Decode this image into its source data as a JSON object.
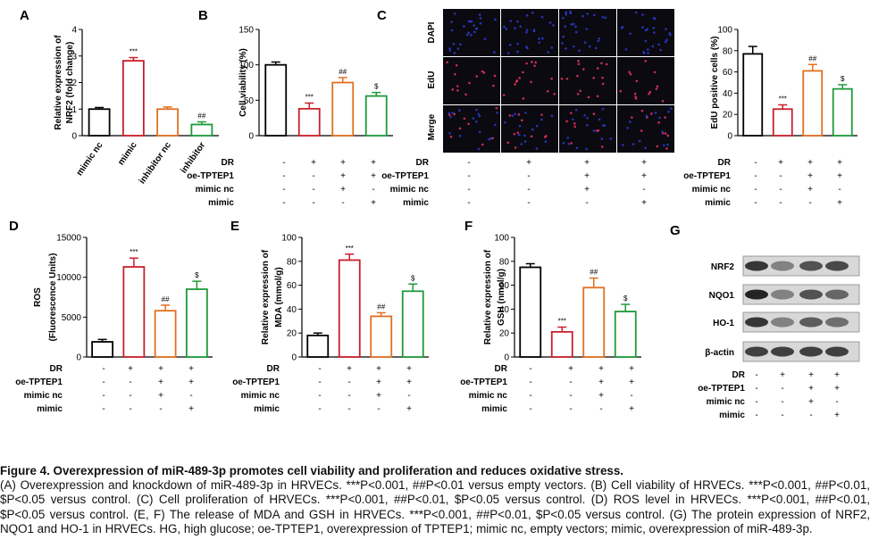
{
  "colors": {
    "mimic_nc": "#000000",
    "mimic": "#c8202c",
    "inhibitor_nc": "#e07020",
    "inhibitor": "#1e9a3a",
    "nuclei": "#2a3ac8",
    "edu": "#e0305a",
    "bg": "#0a0a10"
  },
  "panels": {
    "A": {
      "letter": "A"
    },
    "B": {
      "letter": "B"
    },
    "C": {
      "letter": "C",
      "image_rows": [
        "DAPI",
        "EdU",
        "Merge"
      ]
    },
    "D": {
      "letter": "D"
    },
    "E": {
      "letter": "E"
    },
    "F": {
      "letter": "F"
    },
    "G": {
      "letter": "G",
      "bands": [
        "NRF2",
        "NQO1",
        "HO-1",
        "β-actin"
      ]
    }
  },
  "conditions": {
    "rows": [
      "DR",
      "oe-TPTEP1",
      "mimic nc",
      "mimic"
    ],
    "signs": [
      [
        "-",
        "+",
        "+",
        "+"
      ],
      [
        "-",
        "-",
        "+",
        "+"
      ],
      [
        "-",
        "-",
        "+",
        "-"
      ],
      [
        "-",
        "-",
        "-",
        "+"
      ]
    ]
  },
  "chart_data": [
    {
      "panel": "A",
      "type": "bar",
      "ylabel": "Relative expression of NRF2 (fold change)",
      "ylim": [
        0,
        4
      ],
      "yticks": [
        "0",
        "1",
        "2",
        "3",
        "4"
      ],
      "categories": [
        "mimic nc",
        "mimic",
        "inhibitor nc",
        "inhibitor"
      ],
      "values": [
        1.0,
        2.82,
        1.0,
        0.42
      ],
      "errors": [
        0.06,
        0.12,
        0.08,
        0.1
      ],
      "annotations": [
        "",
        "***",
        "",
        "##"
      ]
    },
    {
      "panel": "B",
      "type": "bar",
      "ylabel": "Cell viability (%)",
      "ylim": [
        0,
        150
      ],
      "yticks": [
        "0",
        "50",
        "100",
        "150"
      ],
      "categories": [
        "1",
        "2",
        "3",
        "4"
      ],
      "values": [
        100,
        38,
        75,
        56
      ],
      "errors": [
        4,
        8,
        7,
        5
      ],
      "annotations": [
        "",
        "***",
        "##",
        "$"
      ]
    },
    {
      "panel": "C",
      "type": "bar",
      "ylabel": "EdU positive cells (%)",
      "ylim": [
        0,
        100
      ],
      "yticks": [
        "0",
        "20",
        "40",
        "60",
        "80",
        "100"
      ],
      "categories": [
        "1",
        "2",
        "3",
        "4"
      ],
      "values": [
        77,
        25,
        61,
        44
      ],
      "errors": [
        7,
        4,
        6,
        4
      ],
      "annotations": [
        "",
        "***",
        "##",
        "$"
      ]
    },
    {
      "panel": "D",
      "type": "bar",
      "ylabel": "ROS (Fluorescence Units)",
      "ylim": [
        0,
        15000
      ],
      "yticks": [
        "0",
        "5000",
        "10000",
        "15000"
      ],
      "categories": [
        "1",
        "2",
        "3",
        "4"
      ],
      "values": [
        1900,
        11300,
        5800,
        8500
      ],
      "errors": [
        300,
        1100,
        700,
        1000
      ],
      "annotations": [
        "",
        "***",
        "##",
        "$"
      ]
    },
    {
      "panel": "E",
      "type": "bar",
      "ylabel": "Relative expression of MDA (mmol/g)",
      "ylim": [
        0,
        100
      ],
      "yticks": [
        "0",
        "20",
        "40",
        "60",
        "80",
        "100"
      ],
      "categories": [
        "1",
        "2",
        "3",
        "4"
      ],
      "values": [
        18,
        81,
        34,
        55
      ],
      "errors": [
        2,
        5,
        3,
        6
      ],
      "annotations": [
        "",
        "***",
        "##",
        "$"
      ]
    },
    {
      "panel": "F",
      "type": "bar",
      "ylabel": "Relative expression of GSH (nmol/g)",
      "ylim": [
        0,
        100
      ],
      "yticks": [
        "0",
        "20",
        "40",
        "60",
        "80",
        "100"
      ],
      "categories": [
        "1",
        "2",
        "3",
        "4"
      ],
      "values": [
        75,
        21,
        58,
        38
      ],
      "errors": [
        3,
        4,
        8,
        6
      ],
      "annotations": [
        "",
        "***",
        "##",
        "$"
      ]
    }
  ],
  "caption": {
    "title": "Figure 4. Overexpression of miR-489-3p promotes cell viability and proliferation and reduces oxidative stress.",
    "body": "(A) Overexpression and knockdown of miR-489-3p in HRVECs. ***P<0.001, ##P<0.01 versus empty vectors. (B) Cell viability of HRVECs. ***P<0.001, ##P<0.01, $P<0.05 versus control. (C) Cell proliferation of HRVECs. ***P<0.001, ##P<0.01, $P<0.05 versus control. (D) ROS level in HRVECs. ***P<0.001, ##P<0.01, $P<0.05 versus control. (E, F) The release of MDA and GSH in HRVECs. ***P<0.001, ##P<0.01, $P<0.05 versus control. (G) The protein expression of NRF2, NQO1 and HO-1 in HRVECs. HG, high glucose; oe-TPTEP1, overexpression of TPTEP1; mimic nc, empty vectors; mimic, overexpression of miR-489-3p."
  }
}
